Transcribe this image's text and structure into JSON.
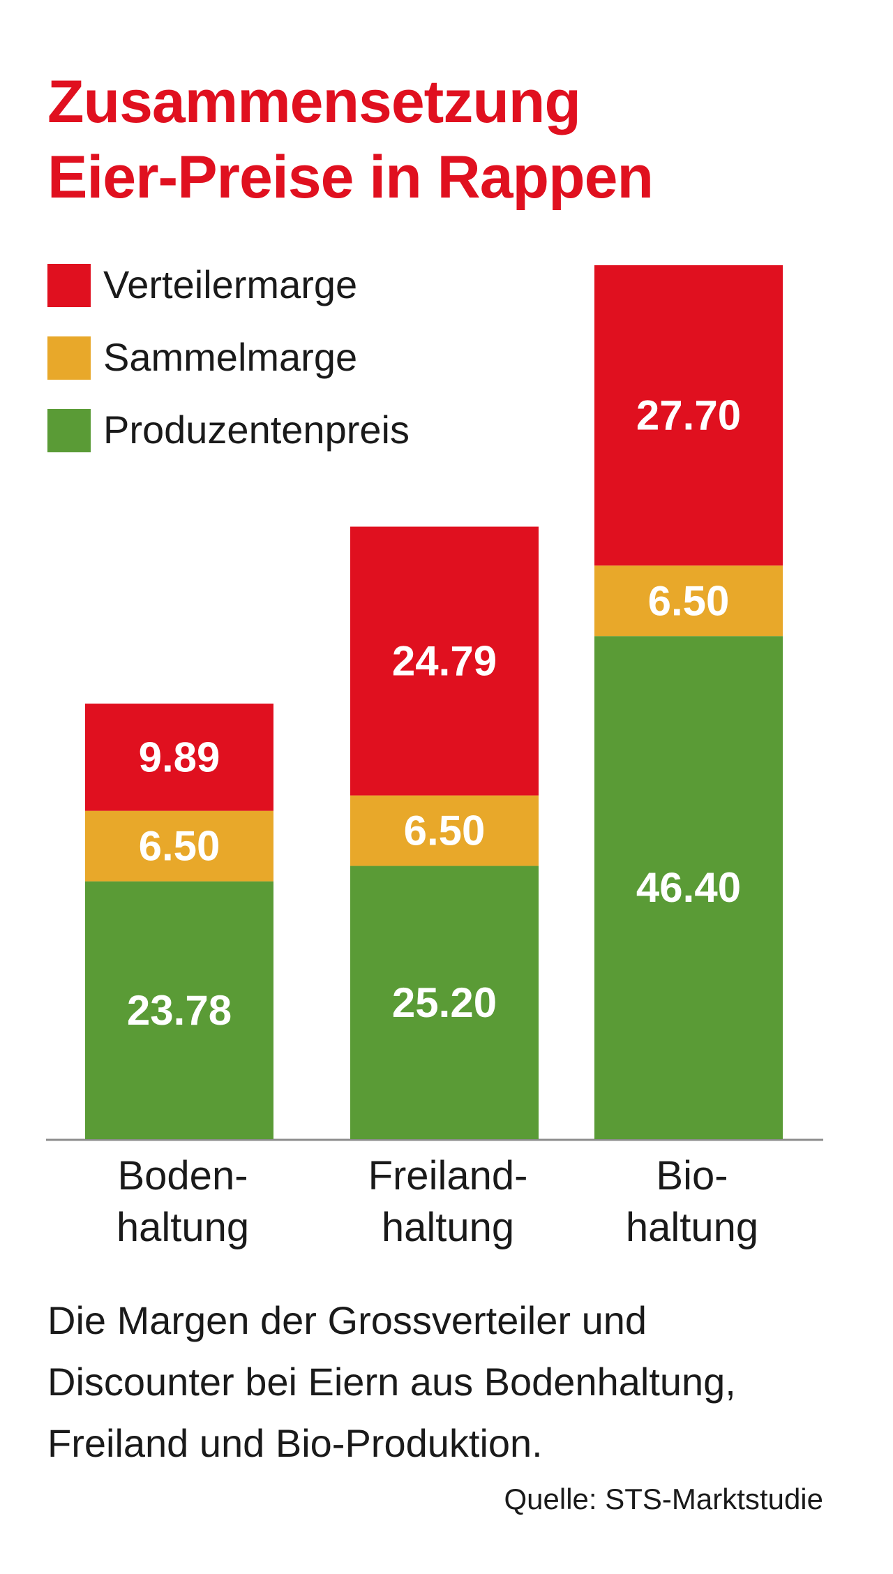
{
  "title": {
    "line1": "Zusammensetzung",
    "line2": "Eier-Preise in Rappen"
  },
  "legend": [
    {
      "label": "Verteilermarge",
      "color": "#e0101f"
    },
    {
      "label": "Sammelmarge",
      "color": "#e8a82a"
    },
    {
      "label": "Produzentenpreis",
      "color": "#5a9b36"
    }
  ],
  "categories": [
    {
      "line1": "Boden-",
      "line2": "haltung"
    },
    {
      "line1": "Freiland-",
      "line2": "haltung"
    },
    {
      "line1": "Bio-",
      "line2": "haltung"
    }
  ],
  "caption": {
    "line1": "Die Margen der Grossverteiler und",
    "line2": "Discounter bei Eiern aus Bodenhaltung,",
    "line3": "Freiland und Bio-Produktion."
  },
  "source": "Quelle: STS-Marktstudie",
  "chart_data": {
    "type": "bar",
    "stacked": true,
    "categories": [
      "Bodenhaltung",
      "Freilandhaltung",
      "Biohaltung"
    ],
    "series": [
      {
        "name": "Produzentenpreis",
        "color": "#5a9b36",
        "values": [
          23.78,
          25.2,
          46.4
        ],
        "labels": [
          "23.78",
          "25.20",
          "46.40"
        ]
      },
      {
        "name": "Sammelmarge",
        "color": "#e8a82a",
        "values": [
          6.5,
          6.5,
          6.5
        ],
        "labels": [
          "6.50",
          "6.50",
          "6.50"
        ]
      },
      {
        "name": "Verteilermarge",
        "color": "#e0101f",
        "values": [
          9.89,
          24.79,
          27.7
        ],
        "labels": [
          "9.89",
          "24.79",
          "27.70"
        ]
      }
    ],
    "ylim": [
      0,
      80.6
    ],
    "title": "Zusammensetzung Eier-Preise in Rappen",
    "xlabel": "",
    "ylabel": "",
    "grid": false,
    "legend_position": "top-left"
  }
}
